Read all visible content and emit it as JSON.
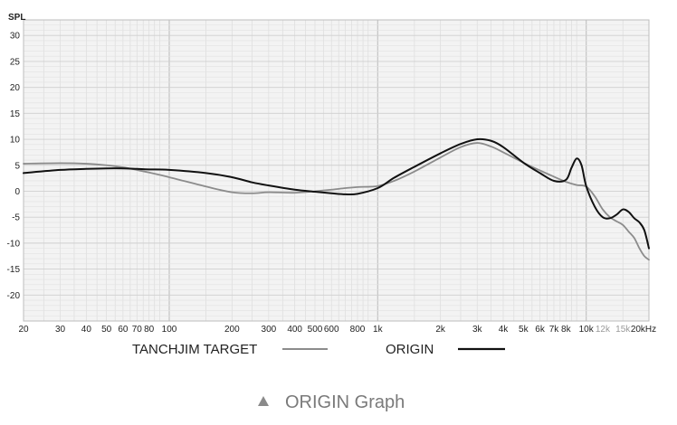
{
  "chart_data": {
    "type": "line",
    "title": "",
    "ylabel": "SPL",
    "xlabel": "",
    "xscale": "log",
    "xlim": [
      20,
      20000
    ],
    "ylim": [
      -25,
      33
    ],
    "grid": true,
    "x_ticks": [
      {
        "value": 20,
        "label": "20",
        "light": false
      },
      {
        "value": 30,
        "label": "30",
        "light": false
      },
      {
        "value": 40,
        "label": "40",
        "light": false
      },
      {
        "value": 50,
        "label": "50",
        "light": false
      },
      {
        "value": 60,
        "label": "60",
        "light": false
      },
      {
        "value": 70,
        "label": "70",
        "light": false
      },
      {
        "value": 80,
        "label": "80",
        "light": false
      },
      {
        "value": 100,
        "label": "100",
        "light": false
      },
      {
        "value": 200,
        "label": "200",
        "light": false
      },
      {
        "value": 300,
        "label": "300",
        "light": false
      },
      {
        "value": 400,
        "label": "400",
        "light": false
      },
      {
        "value": 500,
        "label": "500",
        "light": false
      },
      {
        "value": 600,
        "label": "600",
        "light": false
      },
      {
        "value": 800,
        "label": "800",
        "light": false
      },
      {
        "value": 1000,
        "label": "1k",
        "light": false
      },
      {
        "value": 2000,
        "label": "2k",
        "light": false
      },
      {
        "value": 3000,
        "label": "3k",
        "light": false
      },
      {
        "value": 4000,
        "label": "4k",
        "light": false
      },
      {
        "value": 5000,
        "label": "5k",
        "light": false
      },
      {
        "value": 6000,
        "label": "6k",
        "light": false
      },
      {
        "value": 7000,
        "label": "7k",
        "light": false
      },
      {
        "value": 8000,
        "label": "8k",
        "light": false
      },
      {
        "value": 10000,
        "label": "10k",
        "light": false
      },
      {
        "value": 12000,
        "label": "12k",
        "light": true
      },
      {
        "value": 15000,
        "label": "15k",
        "light": true
      },
      {
        "value": 20000,
        "label": "20kHz",
        "light": false
      }
    ],
    "y_ticks": [
      30,
      25,
      20,
      15,
      10,
      5,
      0,
      -5,
      -10,
      -15,
      -20
    ],
    "series": [
      {
        "name": "TANCHJIM TARGET",
        "color": "#8c8c8c",
        "x": [
          20,
          30,
          40,
          50,
          60,
          70,
          80,
          100,
          150,
          200,
          250,
          300,
          400,
          500,
          600,
          700,
          800,
          1000,
          1200,
          1500,
          2000,
          2500,
          3000,
          3500,
          4000,
          5000,
          6000,
          7000,
          8000,
          9000,
          10000,
          11000,
          12000,
          13000,
          14000,
          15000,
          16000,
          17000,
          18000,
          19000,
          20000
        ],
        "y": [
          5.3,
          5.4,
          5.3,
          5.0,
          4.6,
          4.1,
          3.6,
          2.7,
          0.9,
          -0.2,
          -0.4,
          -0.2,
          -0.3,
          0.0,
          0.3,
          0.6,
          0.8,
          1.0,
          2.0,
          3.8,
          6.5,
          8.5,
          9.3,
          8.6,
          7.5,
          5.5,
          4.0,
          2.8,
          1.8,
          1.2,
          0.9,
          -1.0,
          -3.5,
          -5.0,
          -5.8,
          -6.5,
          -7.8,
          -9.0,
          -11.0,
          -12.5,
          -13.2
        ]
      },
      {
        "name": "ORIGIN",
        "color": "#111111",
        "x": [
          20,
          30,
          40,
          50,
          60,
          70,
          80,
          100,
          150,
          200,
          250,
          300,
          400,
          500,
          600,
          700,
          800,
          1000,
          1200,
          1500,
          2000,
          2500,
          3000,
          3500,
          4000,
          5000,
          6000,
          7000,
          8000,
          8500,
          9000,
          9500,
          10000,
          11000,
          12000,
          13000,
          14000,
          15000,
          16000,
          17000,
          18000,
          19000,
          20000
        ],
        "y": [
          3.5,
          4.1,
          4.3,
          4.4,
          4.4,
          4.3,
          4.2,
          4.1,
          3.5,
          2.7,
          1.7,
          1.1,
          0.3,
          -0.1,
          -0.4,
          -0.6,
          -0.5,
          0.6,
          2.6,
          4.7,
          7.3,
          9.1,
          10.0,
          9.7,
          8.5,
          5.5,
          3.5,
          2.0,
          2.2,
          4.5,
          6.3,
          5.0,
          1.0,
          -3.0,
          -5.0,
          -5.2,
          -4.5,
          -3.5,
          -4.0,
          -5.2,
          -6.0,
          -7.5,
          -11.0
        ]
      }
    ],
    "legend": {
      "position": "bottom",
      "items": [
        {
          "label": "TANCHJIM TARGET",
          "color": "#8c8c8c"
        },
        {
          "label": "ORIGIN",
          "color": "#111111"
        }
      ]
    }
  },
  "caption": {
    "icon": "triangle-icon",
    "text": "ORIGIN Graph"
  }
}
